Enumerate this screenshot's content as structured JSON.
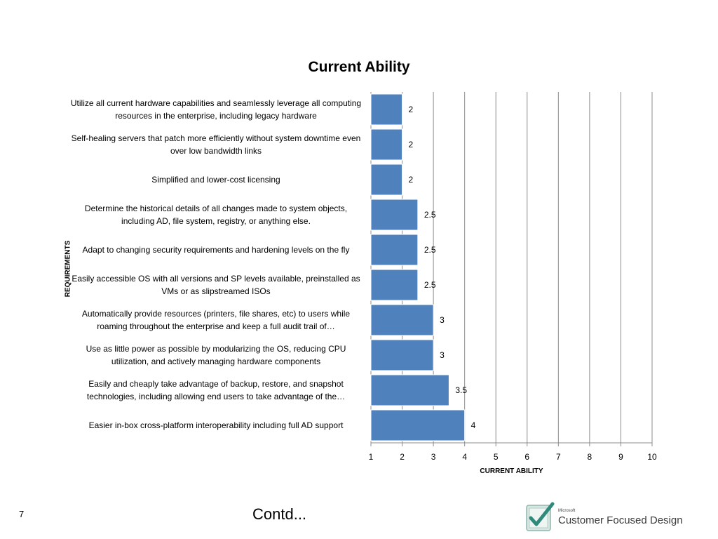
{
  "slide": {
    "page_number": "7",
    "footer_text": "Contd...",
    "logo": {
      "small_text": "Microsoft",
      "text": "Customer Focused Design",
      "icon": "checkmark-logo-icon"
    }
  },
  "chart_data": {
    "type": "bar",
    "orientation": "horizontal",
    "title": "Current Ability",
    "xlabel": "CURRENT ABILITY",
    "ylabel": "REQUIREMENTS",
    "xlim": [
      1,
      10
    ],
    "x_ticks": [
      "1",
      "2",
      "3",
      "4",
      "5",
      "6",
      "7",
      "8",
      "9",
      "10"
    ],
    "grid": true,
    "legend": "none",
    "bar_color": "#4f81bd",
    "categories": [
      "Utilize all current hardware capabilities and seamlessly leverage all computing resources in the enterprise, including legacy hardware",
      "Self-healing servers that patch more efficiently without system downtime even over low bandwidth links",
      "Simplified and lower-cost licensing",
      "Determine the historical details of all changes made to system objects, including AD, file system, registry, or anything else.",
      "Adapt to changing security requirements and hardening levels on the fly",
      "Easily accessible OS with all versions and SP levels available, preinstalled as VMs or as slipstreamed ISOs",
      "Automatically provide resources (printers, file shares, etc) to users while roaming throughout the enterprise and keep a full audit trail of…",
      "Use as little power as possible by modularizing the OS, reducing CPU utilization, and actively managing hardware components",
      "Easily and cheaply take advantage of backup, restore, and snapshot technologies, including allowing end users to take advantage of the…",
      "Easier in-box cross-platform interoperability including full AD support"
    ],
    "values": [
      2,
      2,
      2,
      2.5,
      2.5,
      2.5,
      3,
      3,
      3.5,
      4
    ],
    "value_labels": [
      "2",
      "2",
      "2",
      "2.5",
      "2.5",
      "2.5",
      "3",
      "3",
      "3.5",
      "4"
    ]
  }
}
